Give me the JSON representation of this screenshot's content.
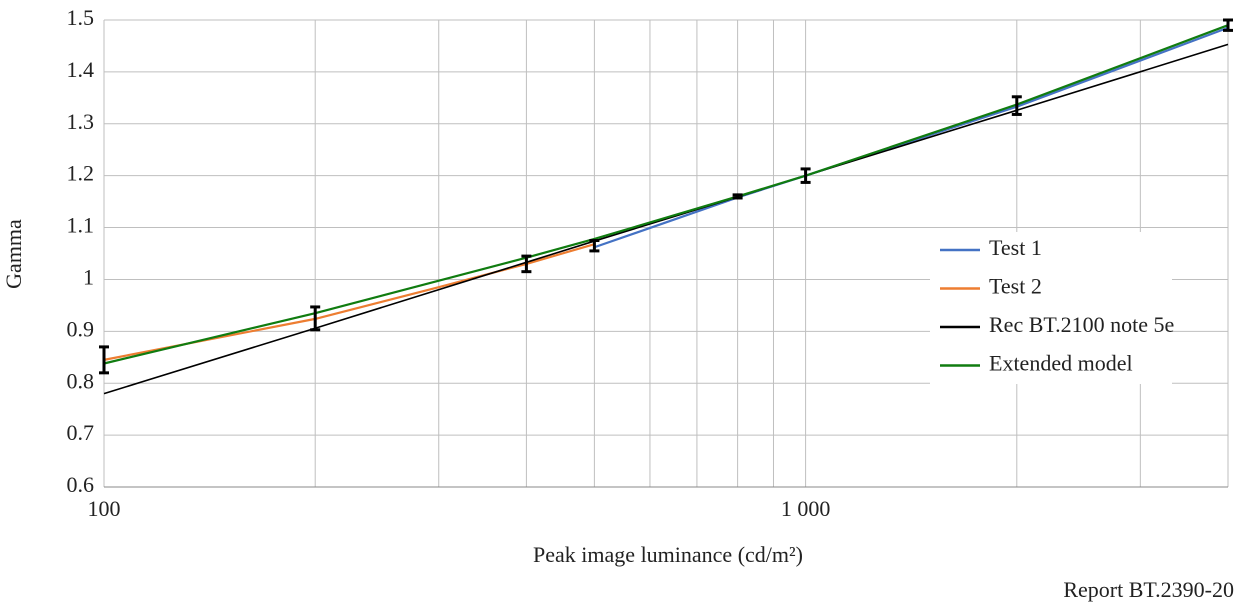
{
  "chart_data": {
    "type": "line",
    "x_label": "Peak image luminance (cd/m²)",
    "y_label": "Gamma",
    "source": "Report BT.2390-20",
    "log_x": true,
    "grid": true,
    "legend": "right",
    "xlim": [
      100,
      4000
    ],
    "ylim": [
      0.6,
      1.5
    ],
    "xticks": [
      100,
      {
        "value": 1000,
        "label": "1 000"
      }
    ],
    "xgrid": [
      200,
      300,
      400,
      500,
      600,
      700,
      800,
      900,
      2000,
      3000
    ],
    "yticks": [
      0.6,
      0.7,
      0.8,
      0.9,
      1,
      1.1,
      1.2,
      1.3,
      1.4,
      1.5
    ],
    "series": [
      {
        "name": "Test 1",
        "color": "#4472c4",
        "x": [
          500,
          800,
          1000,
          2000,
          4000
        ],
        "values": [
          1.062,
          1.158,
          1.2,
          1.333,
          1.485
        ]
      },
      {
        "name": "Test 2",
        "color": "#ed7d31",
        "x": [
          100,
          200,
          300,
          400,
          500
        ],
        "values": [
          0.845,
          0.924,
          0.985,
          1.03,
          1.068
        ]
      },
      {
        "name": "Rec BT.2100 note 5e",
        "color": "#000000",
        "x": [
          100,
          200,
          400,
          500,
          800,
          1000,
          2000,
          4000
        ],
        "values": [
          0.78,
          0.906,
          1.033,
          1.074,
          1.159,
          1.2,
          1.326,
          1.453
        ]
      },
      {
        "name": "Extended model",
        "color": "#107c10",
        "x": [
          100,
          200,
          400,
          500,
          800,
          1000,
          2000,
          4000
        ],
        "values": [
          0.838,
          0.935,
          1.042,
          1.078,
          1.16,
          1.2,
          1.337,
          1.49
        ]
      }
    ],
    "error_bars": {
      "color": "#000000",
      "x": [
        100,
        200,
        400,
        500,
        800,
        1000,
        2000,
        4000
      ],
      "values": [
        0.845,
        0.925,
        1.03,
        1.065,
        1.16,
        1.2,
        1.335,
        1.49
      ],
      "errors": [
        0.025,
        0.022,
        0.015,
        0.01,
        0.003,
        0.013,
        0.017,
        0.01
      ]
    }
  }
}
